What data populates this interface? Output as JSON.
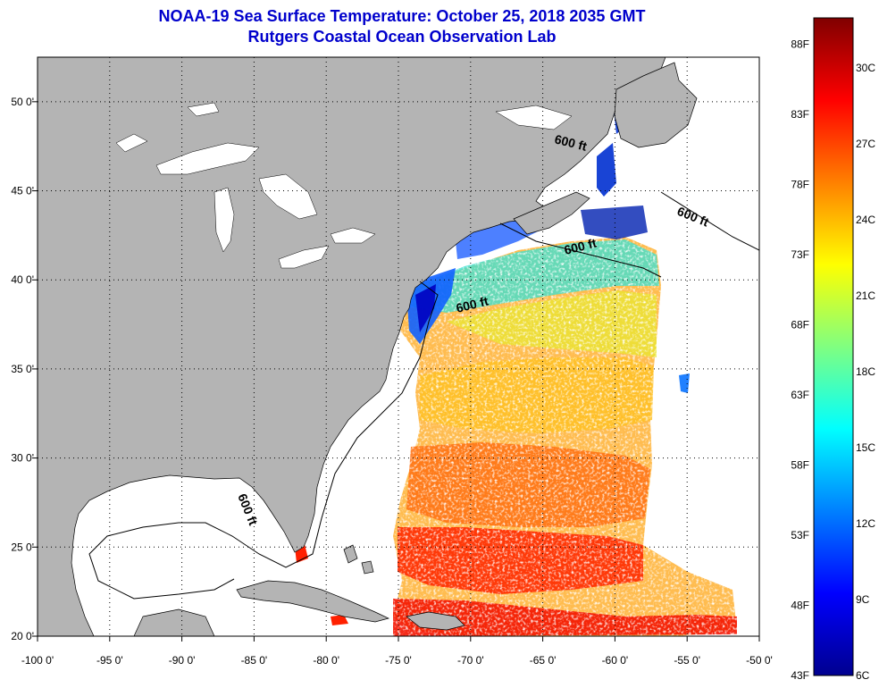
{
  "title": {
    "line1": "NOAA-19 Sea Surface Temperature:  October 25, 2018 2035 GMT",
    "line2": "Rutgers Coastal Ocean Observation Lab"
  },
  "map": {
    "lon_range": [
      -100,
      -50
    ],
    "lat_range": [
      20,
      52.5
    ],
    "lon_ticks": [
      {
        "value": -100,
        "label": "-100 0'"
      },
      {
        "value": -95,
        "label": "-95 0'"
      },
      {
        "value": -90,
        "label": "-90 0'"
      },
      {
        "value": -85,
        "label": "-85 0'"
      },
      {
        "value": -80,
        "label": "-80 0'"
      },
      {
        "value": -75,
        "label": "-75 0'"
      },
      {
        "value": -70,
        "label": "-70 0'"
      },
      {
        "value": -65,
        "label": "-65 0'"
      },
      {
        "value": -60,
        "label": "-60 0'"
      },
      {
        "value": -55,
        "label": "-55 0'"
      },
      {
        "value": -50,
        "label": "-50 0'"
      }
    ],
    "lat_ticks": [
      {
        "value": 20,
        "label": "20 0'"
      },
      {
        "value": 25,
        "label": "25 0'"
      },
      {
        "value": 30,
        "label": "30 0'"
      },
      {
        "value": 35,
        "label": "35 0'"
      },
      {
        "value": 40,
        "label": "40 0'"
      },
      {
        "value": 45,
        "label": "45 0'"
      },
      {
        "value": 50,
        "label": "50 0'"
      }
    ],
    "depth_contour_label": "600 ft",
    "land_color": "#b4b4b4",
    "ocean_color": "#ffffff"
  },
  "colorbar": {
    "celsius": [
      "6C",
      "9C",
      "12C",
      "15C",
      "18C",
      "21C",
      "24C",
      "27C",
      "30C"
    ],
    "fahrenheit": [
      "43F",
      "48F",
      "53F",
      "58F",
      "63F",
      "68F",
      "73F",
      "78F",
      "83F",
      "88F"
    ],
    "colors": [
      "#00008f",
      "#0000ff",
      "#0080ff",
      "#00ffff",
      "#80ff80",
      "#ffff00",
      "#ff8000",
      "#ff0000",
      "#800000"
    ]
  }
}
